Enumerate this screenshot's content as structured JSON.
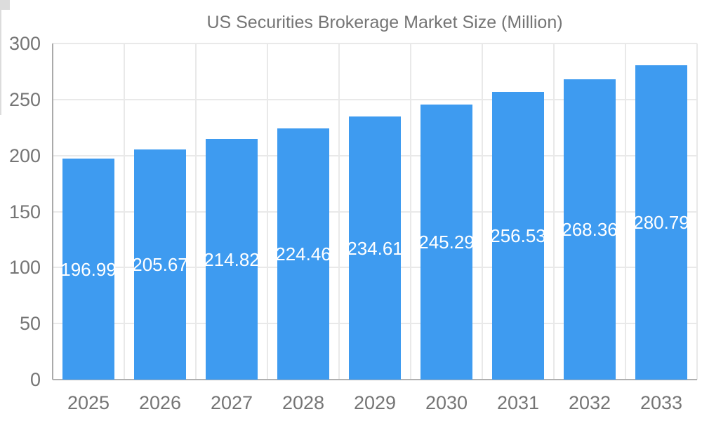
{
  "colors": {
    "bar": "#3e9bf0",
    "axis_text": "#757575",
    "bar_label_text": "#ffffff",
    "gridline": "#e9e9e9",
    "axis_line": "#aaaaaa",
    "background": "#ffffff"
  },
  "legend": {
    "label": "US Securities Brokerage Market Size (Million)"
  },
  "chart_data": {
    "type": "bar",
    "title": "US Securities Brokerage Market Size (Million)",
    "categories": [
      "2025",
      "2026",
      "2027",
      "2028",
      "2029",
      "2030",
      "2031",
      "2032",
      "2033"
    ],
    "series": [
      {
        "name": "US Securities Brokerage Market Size (Million)",
        "values": [
          196.99,
          205.67,
          214.82,
          224.46,
          234.61,
          245.29,
          256.53,
          268.36,
          280.79
        ]
      }
    ],
    "value_labels": [
      "196.99",
      "205.67",
      "214.82",
      "224.46",
      "234.61",
      "245.29",
      "256.53",
      "268.36",
      "280.79"
    ],
    "xlabel": "",
    "ylabel": "",
    "ylim": [
      0,
      300
    ],
    "yticks": [
      0,
      50,
      100,
      150,
      200,
      250,
      300
    ],
    "ytick_labels": [
      "0",
      "50",
      "100",
      "150",
      "200",
      "250",
      "300"
    ],
    "grid": true,
    "legend_position": "top",
    "value_label_position": "inside-center"
  }
}
